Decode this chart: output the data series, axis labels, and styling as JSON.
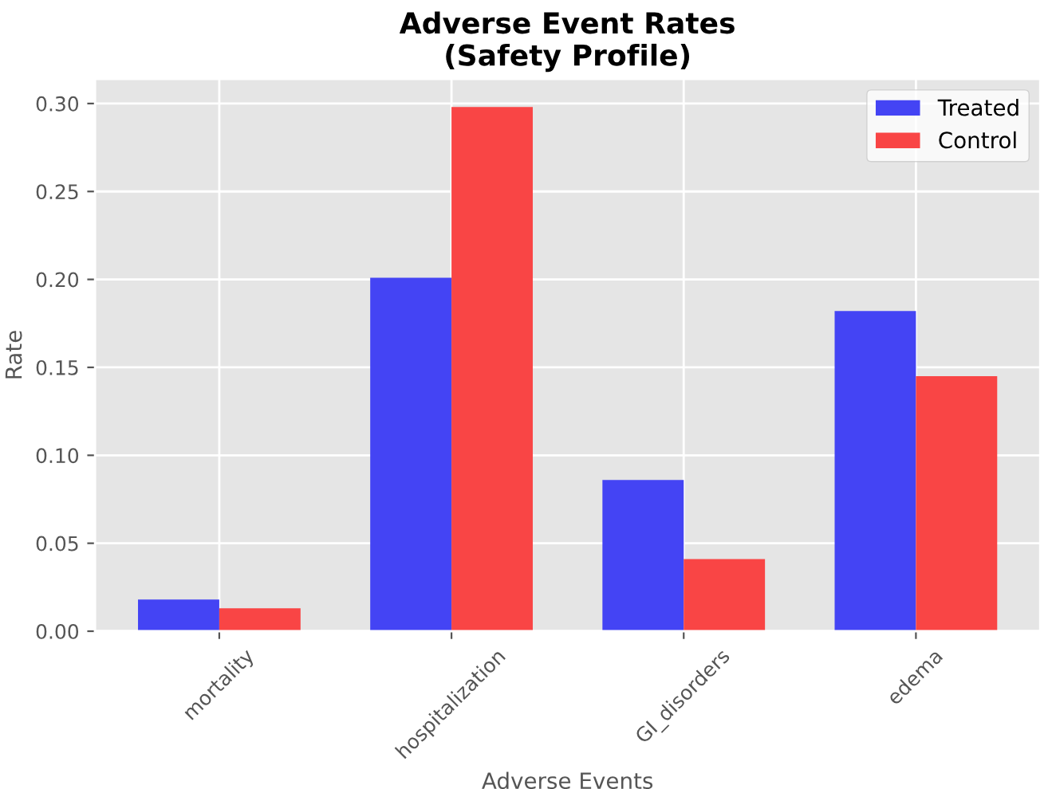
{
  "chart_data": {
    "type": "bar",
    "title": "Adverse Event Rates\n(Safety Profile)",
    "xlabel": "Adverse Events",
    "ylabel": "Rate",
    "categories": [
      "mortality",
      "hospitalization",
      "GI_disorders",
      "edema"
    ],
    "series": [
      {
        "name": "Treated",
        "color": "#4444f4",
        "values": [
          0.018,
          0.201,
          0.086,
          0.182
        ]
      },
      {
        "name": "Control",
        "color": "#f94545",
        "values": [
          0.013,
          0.298,
          0.041,
          0.145
        ]
      }
    ],
    "ylim": [
      0,
      0.314
    ],
    "yticks": [
      {
        "value": 0,
        "label": "0.00"
      },
      {
        "value": 0.05,
        "label": "0.05"
      },
      {
        "value": 0.1,
        "label": "0.10"
      },
      {
        "value": 0.15,
        "label": "0.15"
      },
      {
        "value": 0.2,
        "label": "0.20"
      },
      {
        "value": 0.25,
        "label": "0.25"
      },
      {
        "value": 0.3,
        "label": "0.30"
      }
    ],
    "grid": true,
    "legend": "upper right"
  }
}
